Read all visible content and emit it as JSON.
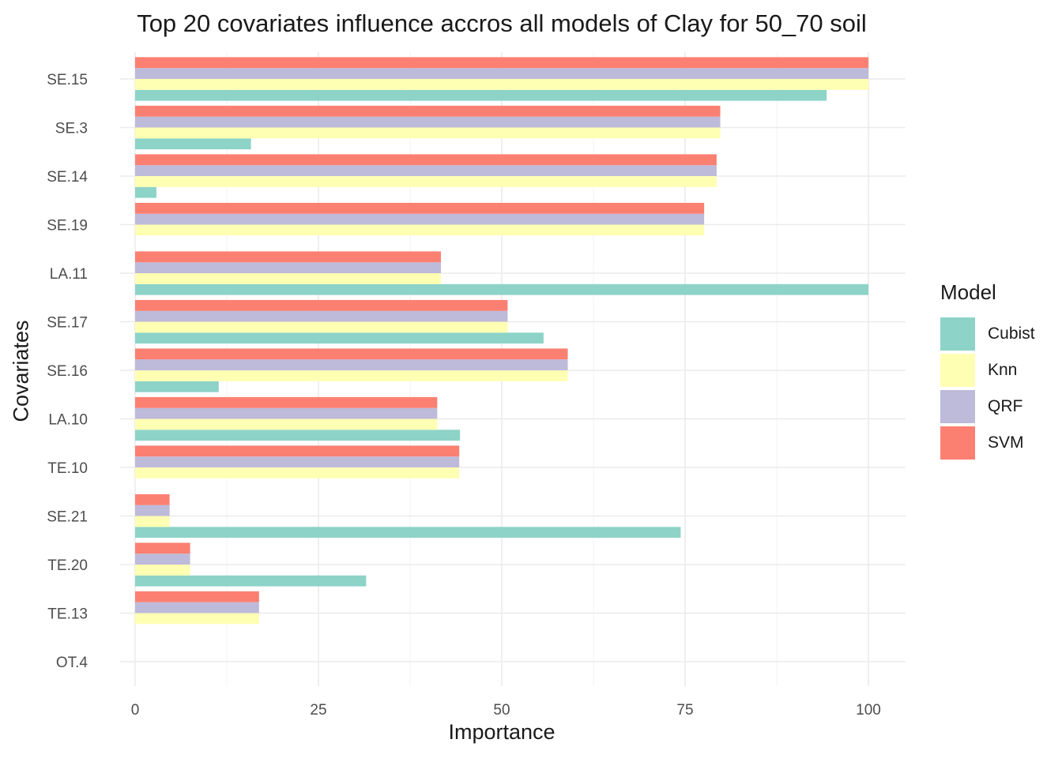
{
  "chart_data": {
    "type": "bar",
    "orientation": "horizontal",
    "title": "Top 20 covariates influence accros all models of Clay for 50_70 soil",
    "xlabel": "Importance",
    "ylabel": "Covariates",
    "xlim": [
      0,
      100
    ],
    "xticks": [
      0,
      25,
      50,
      75,
      100
    ],
    "grid": true,
    "legend_title": "Model",
    "legend_position": "right",
    "categories": [
      "SE.15",
      "SE.3",
      "SE.14",
      "SE.19",
      "LA.11",
      "SE.17",
      "SE.16",
      "LA.10",
      "TE.10",
      "SE.21",
      "TE.20",
      "TE.13",
      "OT.4"
    ],
    "series": [
      {
        "name": "Cubist",
        "color": "#8DD3C7",
        "values": [
          94.3,
          15.8,
          2.9,
          0,
          100,
          55.7,
          11.4,
          44.3,
          0,
          74.4,
          31.5,
          0,
          0
        ]
      },
      {
        "name": "Knn",
        "color": "#FFFFB3",
        "values": [
          100,
          79.8,
          79.3,
          77.6,
          41.7,
          50.8,
          59.0,
          41.2,
          44.2,
          4.7,
          7.5,
          16.9,
          0
        ]
      },
      {
        "name": "QRF",
        "color": "#BEBADA",
        "values": [
          100,
          79.8,
          79.3,
          77.6,
          41.7,
          50.8,
          59.0,
          41.2,
          44.2,
          4.7,
          7.5,
          16.9,
          0
        ]
      },
      {
        "name": "SVM",
        "color": "#FB8072",
        "values": [
          100,
          79.8,
          79.3,
          77.6,
          41.7,
          50.8,
          59.0,
          41.2,
          44.2,
          4.7,
          7.5,
          16.9,
          0
        ]
      }
    ]
  }
}
